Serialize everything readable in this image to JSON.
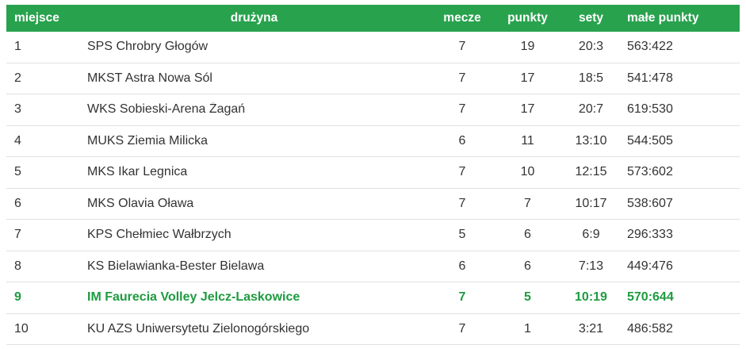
{
  "chart_data": {
    "type": "table",
    "columns": [
      {
        "key": "place",
        "label": "miejsce"
      },
      {
        "key": "team",
        "label": "drużyna"
      },
      {
        "key": "matches",
        "label": "mecze"
      },
      {
        "key": "points",
        "label": "punkty"
      },
      {
        "key": "sets",
        "label": "sety"
      },
      {
        "key": "small_points",
        "label": "małe punkty"
      }
    ],
    "rows": [
      {
        "place": "1",
        "team": "SPS Chrobry Głogów",
        "matches": "7",
        "points": "19",
        "sets": "20:3",
        "small_points": "563:422",
        "highlighted": false
      },
      {
        "place": "2",
        "team": "MKST Astra Nowa Sól",
        "matches": "7",
        "points": "17",
        "sets": "18:5",
        "small_points": "541:478",
        "highlighted": false
      },
      {
        "place": "3",
        "team": "WKS Sobieski-Arena Żagań",
        "matches": "7",
        "points": "17",
        "sets": "20:7",
        "small_points": "619:530",
        "highlighted": false
      },
      {
        "place": "4",
        "team": "MUKS Ziemia Milicka",
        "matches": "6",
        "points": "11",
        "sets": "13:10",
        "small_points": "544:505",
        "highlighted": false
      },
      {
        "place": "5",
        "team": "MKS Ikar Legnica",
        "matches": "7",
        "points": "10",
        "sets": "12:15",
        "small_points": "573:602",
        "highlighted": false
      },
      {
        "place": "6",
        "team": "MKS Olavia Oława",
        "matches": "7",
        "points": "7",
        "sets": "10:17",
        "small_points": "538:607",
        "highlighted": false
      },
      {
        "place": "7",
        "team": "KPS Chełmiec Wałbrzych",
        "matches": "5",
        "points": "6",
        "sets": "6:9",
        "small_points": "296:333",
        "highlighted": false
      },
      {
        "place": "8",
        "team": "KS Bielawianka-Bester Bielawa",
        "matches": "6",
        "points": "6",
        "sets": "7:13",
        "small_points": "449:476",
        "highlighted": false
      },
      {
        "place": "9",
        "team": "IM Faurecia Volley Jelcz-Laskowice",
        "matches": "7",
        "points": "5",
        "sets": "10:19",
        "small_points": "570:644",
        "highlighted": true
      },
      {
        "place": "10",
        "team": "KU AZS Uniwersytetu Zielonogórskiego",
        "matches": "7",
        "points": "1",
        "sets": "3:21",
        "small_points": "486:582",
        "highlighted": false
      }
    ],
    "highlighted_row_place": "9"
  },
  "colors": {
    "header_bg": "#29a24e",
    "header_text": "#ffffff",
    "row_text": "#333333",
    "highlight_text": "#1e9b40",
    "row_border": "#e1e1e1"
  }
}
